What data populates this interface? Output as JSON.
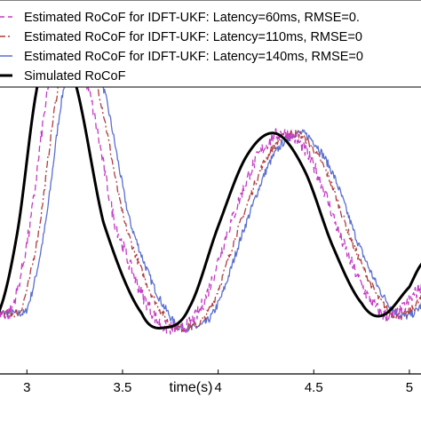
{
  "chart_data": {
    "type": "line",
    "xlabel": "time(s)",
    "ylabel": "",
    "title": "",
    "x_ticks": [
      3,
      3.5,
      4,
      4.5,
      5
    ],
    "x_tick_labels": [
      "3",
      "3.5",
      "4",
      "4.5",
      "5"
    ],
    "xlim": [
      2.85,
      5.07
    ],
    "ylim": [
      -0.85,
      1.0
    ],
    "grid": false,
    "legend_position": "top-left",
    "series": [
      {
        "name": "Estimated RoCoF for IDFT-UKF: Latency=60ms, RMSE=0.",
        "color": "#c33cc3",
        "dash": "dashed",
        "latency": 0.06,
        "noise": 0.035
      },
      {
        "name": "Estimated RoCoF for IDFT-UKF: Latency=110ms, RMSE=0",
        "color": "#b03c3c",
        "dash": "dashdot",
        "latency": 0.11,
        "noise": 0.02
      },
      {
        "name": "Estimated RoCoF for IDFT-UKF: Latency=140ms, RMSE=0",
        "color": "#5a6fd0",
        "dash": "solid",
        "latency": 0.14,
        "noise": 0.02
      },
      {
        "name": "Simulated RoCoF",
        "color": "#000000",
        "dash": "solid",
        "latency": 0,
        "noise": 0
      }
    ],
    "simulated_rocof": {
      "x": [
        2.85,
        2.95,
        3.05,
        3.13,
        3.25,
        3.4,
        3.6,
        3.73,
        3.85,
        4.0,
        4.15,
        4.3,
        4.45,
        4.6,
        4.75,
        4.86,
        5.0,
        5.07
      ],
      "y": [
        -0.55,
        -0.15,
        0.55,
        0.85,
        0.6,
        -0.1,
        -0.55,
        -0.62,
        -0.52,
        -0.12,
        0.23,
        0.34,
        0.16,
        -0.22,
        -0.5,
        -0.56,
        -0.42,
        -0.3
      ]
    }
  }
}
